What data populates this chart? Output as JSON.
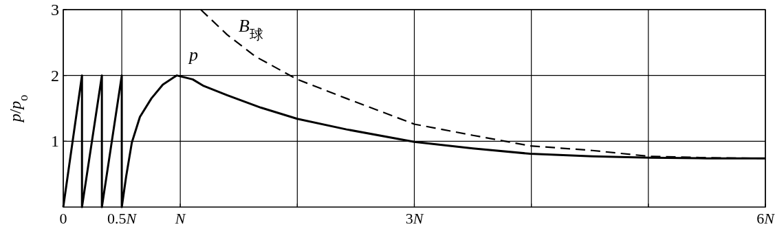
{
  "chart_data": {
    "type": "line",
    "ylabel": "p/p$_{o}$",
    "xlim": [
      0,
      6
    ],
    "ylim": [
      0,
      3
    ],
    "xticks": [
      0,
      {
        "value": 0.5,
        "label": "0.5N"
      },
      {
        "value": 1,
        "label": "N"
      },
      {
        "value": 2,
        "label": null
      },
      {
        "value": 3,
        "label": "3N"
      },
      {
        "value": 4,
        "label": null
      },
      {
        "value": 5,
        "label": null
      },
      {
        "value": 6,
        "label": "6N"
      }
    ],
    "yticks": [
      1,
      2,
      3
    ],
    "grid": true,
    "marker": "none",
    "series": [
      {
        "name": "p",
        "color": "#000000",
        "line_style": "solid",
        "x": [
          0,
          0.16,
          0.16,
          0.33,
          0.33,
          0.5,
          0.5,
          0.537,
          0.586,
          0.655,
          0.753,
          0.851,
          0.969,
          1.106,
          1.2,
          1.4,
          1.69,
          2.0,
          2.42,
          3.0,
          3.5,
          3.99,
          4.52,
          5.01,
          5.5,
          6.0
        ],
        "values": [
          0,
          2,
          0,
          2,
          0,
          2,
          0,
          0.46,
          0.98,
          1.37,
          1.65,
          1.86,
          2.0,
          1.94,
          1.84,
          1.7,
          1.51,
          1.34,
          1.18,
          0.99,
          0.89,
          0.81,
          0.77,
          0.75,
          0.74,
          0.74
        ]
      },
      {
        "name": "B$_{球}$",
        "color": "#000000",
        "line_style": "dashed",
        "x": [
          1.175,
          1.4,
          1.64,
          2.0,
          2.42,
          3.0,
          3.5,
          3.99,
          4.52,
          5.01,
          5.5,
          6.0
        ],
        "values": [
          3.0,
          2.62,
          2.29,
          1.94,
          1.65,
          1.26,
          1.09,
          0.93,
          0.86,
          0.77,
          0.75,
          0.74
        ]
      }
    ]
  }
}
